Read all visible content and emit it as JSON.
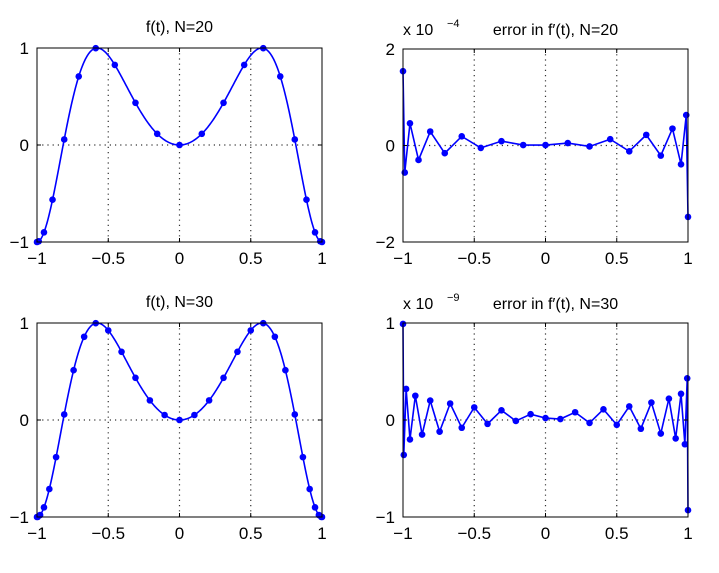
{
  "chart_data": [
    {
      "type": "line",
      "title": "f(t), N=20",
      "xlabel": "",
      "ylabel": "",
      "xlim": [
        -1,
        1
      ],
      "ylim": [
        -1,
        1
      ],
      "xticks": [
        "-1",
        "-0.5",
        "0",
        "0.5",
        "1"
      ],
      "xtick_values": [
        -1,
        -0.5,
        0,
        0.5,
        1
      ],
      "yticks": [
        "-1",
        "0",
        "1"
      ],
      "ytick_values": [
        -1,
        0,
        1
      ],
      "grid": "dotted",
      "color": "#0000ff",
      "interpolant_curve": true,
      "x": [
        -1,
        -0.9877,
        -0.9511,
        -0.891,
        -0.809,
        -0.7071,
        -0.5878,
        -0.454,
        -0.309,
        -0.1564,
        0,
        0.1564,
        0.309,
        0.454,
        0.5878,
        0.7071,
        0.809,
        0.891,
        0.9511,
        0.9877,
        1
      ],
      "y": [
        -1,
        -0.9933,
        -0.9006,
        -0.5642,
        0.0573,
        0.7071,
        0.9983,
        0.8255,
        0.435,
        0.115,
        0,
        0.115,
        0.435,
        0.8255,
        0.9983,
        0.7071,
        0.0573,
        -0.5642,
        -0.9006,
        -0.9933,
        -1
      ]
    },
    {
      "type": "line",
      "title": "error in f′(t), N=20",
      "scale_label": "x 10",
      "scale_exponent": "-4",
      "xlim": [
        -1,
        1
      ],
      "ylim": [
        -2,
        2
      ],
      "xticks": [
        "-1",
        "-0.5",
        "0",
        "0.5",
        "1"
      ],
      "xtick_values": [
        -1,
        -0.5,
        0,
        0.5,
        1
      ],
      "yticks": [
        "-2",
        "0",
        "2"
      ],
      "ytick_values": [
        -2,
        0,
        2
      ],
      "grid": "dotted",
      "color": "#0000ff",
      "interpolant_curve": false,
      "x": [
        -1,
        -0.9877,
        -0.9511,
        -0.891,
        -0.809,
        -0.7071,
        -0.5878,
        -0.454,
        -0.309,
        -0.1564,
        0,
        0.1564,
        0.309,
        0.454,
        0.5878,
        0.7071,
        0.809,
        0.891,
        0.9511,
        0.9877,
        1
      ],
      "y": [
        1.54,
        -0.56,
        0.46,
        -0.3,
        0.29,
        -0.16,
        0.19,
        -0.05,
        0.09,
        0.01,
        0.01,
        0.05,
        -0.02,
        0.13,
        -0.12,
        0.22,
        -0.21,
        0.35,
        -0.39,
        0.63,
        -1.48
      ]
    },
    {
      "type": "line",
      "title": "f(t), N=30",
      "xlim": [
        -1,
        1
      ],
      "ylim": [
        -1,
        1
      ],
      "xticks": [
        "-1",
        "-0.5",
        "0",
        "0.5",
        "1"
      ],
      "xtick_values": [
        -1,
        -0.5,
        0,
        0.5,
        1
      ],
      "yticks": [
        "-1",
        "0",
        "1"
      ],
      "ytick_values": [
        -1,
        0,
        1
      ],
      "grid": "dotted",
      "color": "#0000ff",
      "interpolant_curve": true,
      "x": [
        -1,
        -0.9945,
        -0.9781,
        -0.9511,
        -0.9135,
        -0.866,
        -0.809,
        -0.7431,
        -0.6691,
        -0.5878,
        -0.5,
        -0.4067,
        -0.309,
        -0.2079,
        -0.1045,
        0,
        0.1045,
        0.2079,
        0.309,
        0.4067,
        0.5,
        0.5878,
        0.6691,
        0.7431,
        0.809,
        0.866,
        0.9135,
        0.9511,
        0.9781,
        0.9945,
        1
      ],
      "y": [
        -1,
        -0.9986,
        -0.9794,
        -0.9006,
        -0.7113,
        -0.3827,
        0.0573,
        0.5133,
        0.8581,
        0.9983,
        0.9239,
        0.703,
        0.435,
        0.2023,
        0.0515,
        0,
        0.0515,
        0.2023,
        0.435,
        0.703,
        0.9239,
        0.9983,
        0.8581,
        0.5133,
        0.0573,
        -0.3827,
        -0.7113,
        -0.9006,
        -0.9794,
        -0.9986,
        -1
      ]
    },
    {
      "type": "line",
      "title": "error in f′(t), N=30",
      "scale_label": "x 10",
      "scale_exponent": "-9",
      "xlim": [
        -1,
        1
      ],
      "ylim": [
        -1,
        1
      ],
      "xticks": [
        "-1",
        "-0.5",
        "0",
        "0.5",
        "1"
      ],
      "xtick_values": [
        -1,
        -0.5,
        0,
        0.5,
        1
      ],
      "yticks": [
        "-1",
        "0",
        "1"
      ],
      "ytick_values": [
        -1,
        0,
        1
      ],
      "grid": "dotted",
      "color": "#0000ff",
      "interpolant_curve": false,
      "x": [
        -1,
        -0.9945,
        -0.9781,
        -0.9511,
        -0.9135,
        -0.866,
        -0.809,
        -0.7431,
        -0.6691,
        -0.5878,
        -0.5,
        -0.4067,
        -0.309,
        -0.2079,
        -0.1045,
        0,
        0.1045,
        0.2079,
        0.309,
        0.4067,
        0.5,
        0.5878,
        0.6691,
        0.7431,
        0.809,
        0.866,
        0.9135,
        0.9511,
        0.9781,
        0.9945,
        1
      ],
      "y": [
        0.99,
        -0.36,
        0.32,
        -0.2,
        0.25,
        -0.15,
        0.2,
        -0.12,
        0.17,
        -0.08,
        0.13,
        -0.04,
        0.1,
        -0.01,
        0.06,
        0.02,
        0.01,
        0.08,
        -0.03,
        0.11,
        -0.05,
        0.14,
        -0.09,
        0.18,
        -0.14,
        0.22,
        -0.19,
        0.27,
        -0.25,
        0.43,
        -0.93
      ]
    }
  ]
}
